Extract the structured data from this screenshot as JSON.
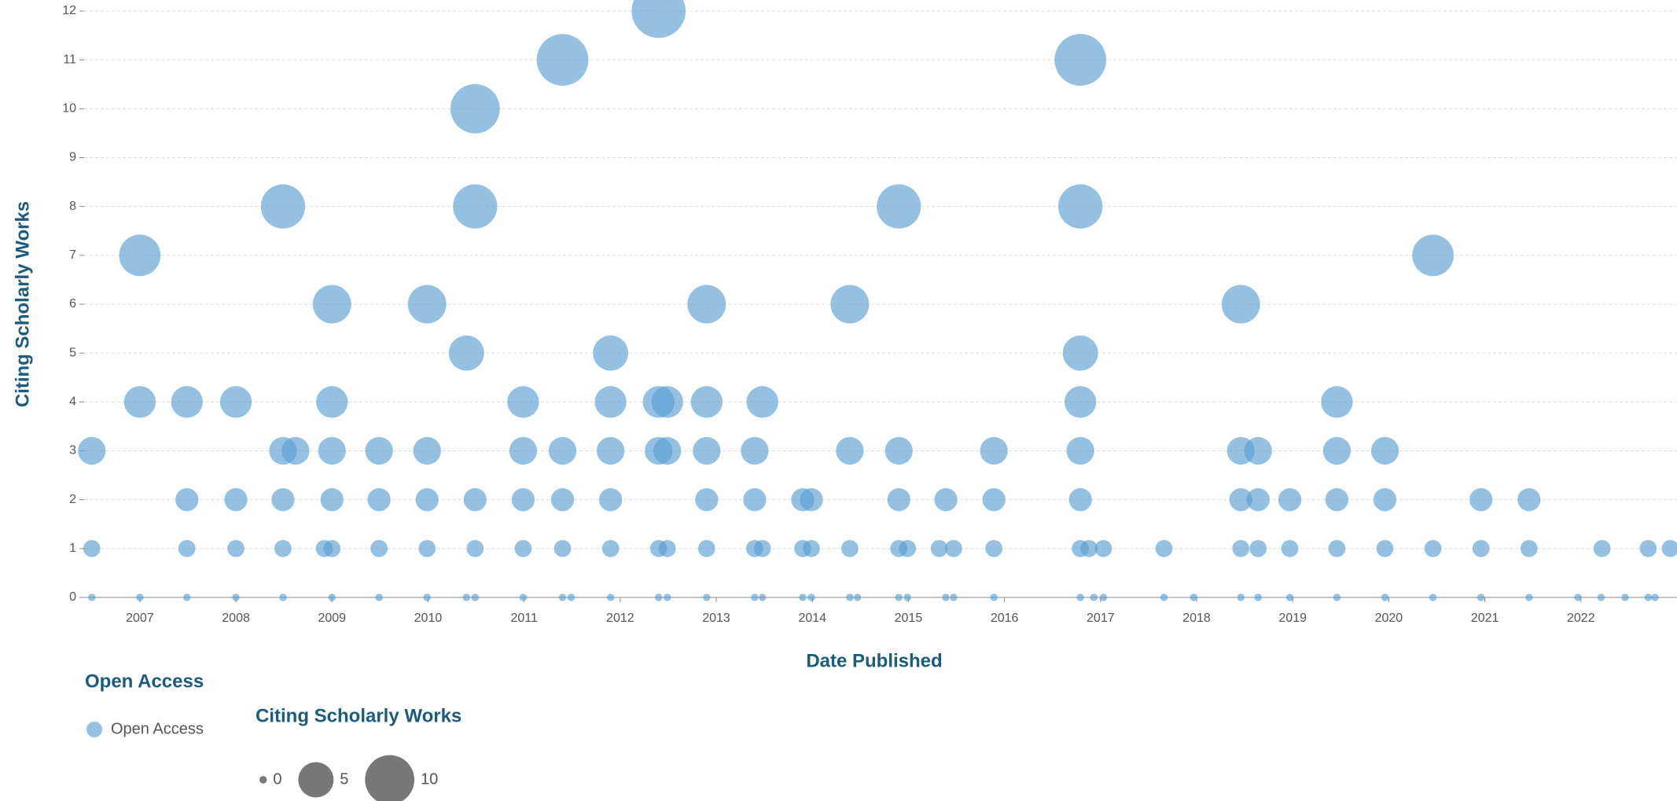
{
  "chart_data": {
    "type": "bubble",
    "y_label": "Citing Scholarly Works",
    "x_label": "Date Published",
    "xlim": [
      2006.42,
      2023.0
    ],
    "ylim": [
      0,
      12
    ],
    "xticks": [
      2007,
      2008,
      2009,
      2010,
      2011,
      2012,
      2013,
      2014,
      2015,
      2016,
      2017,
      2018,
      2019,
      2020,
      2021,
      2022
    ],
    "yticks": [
      0,
      1,
      2,
      3,
      4,
      5,
      6,
      7,
      8,
      9,
      10,
      11,
      12
    ],
    "grid": true,
    "series": [
      {
        "name": "Open Access",
        "color": "#5b9fd2",
        "x": [
          2012.4,
          2011.4,
          2016.79,
          2010.49,
          2008.49,
          2010.49,
          2014.9,
          2016.79,
          2007.0,
          2020.46,
          2009.0,
          2009.99,
          2012.9,
          2014.39,
          2018.46,
          2010.4,
          2011.9,
          2016.79,
          2007.0,
          2007.49,
          2008.0,
          2009.0,
          2010.99,
          2011.9,
          2012.4,
          2012.49,
          2012.9,
          2013.48,
          2016.79,
          2019.46,
          2006.5,
          2008.49,
          2008.62,
          2009.0,
          2009.49,
          2009.99,
          2010.99,
          2011.4,
          2011.9,
          2012.4,
          2012.49,
          2012.9,
          2013.4,
          2014.39,
          2014.9,
          2015.89,
          2016.79,
          2018.46,
          2018.64,
          2019.46,
          2019.96,
          2007.49,
          2008.0,
          2008.49,
          2009.0,
          2009.49,
          2009.99,
          2010.49,
          2010.99,
          2011.4,
          2011.9,
          2012.9,
          2013.4,
          2013.9,
          2013.99,
          2014.9,
          2015.39,
          2015.89,
          2016.79,
          2018.46,
          2018.64,
          2018.97,
          2019.46,
          2019.96,
          2020.96,
          2021.46,
          2006.5,
          2007.49,
          2008.0,
          2008.49,
          2008.92,
          2009.0,
          2009.49,
          2009.99,
          2010.49,
          2010.99,
          2011.4,
          2011.9,
          2012.4,
          2012.49,
          2012.9,
          2013.4,
          2013.48,
          2013.9,
          2013.99,
          2014.39,
          2014.9,
          2014.99,
          2015.32,
          2015.47,
          2015.89,
          2016.79,
          2016.88,
          2017.03,
          2017.66,
          2018.46,
          2018.64,
          2018.97,
          2019.46,
          2019.96,
          2020.46,
          2020.96,
          2021.46,
          2022.22,
          2022.7,
          2022.93,
          2006.5,
          2007.0,
          2007.49,
          2008.0,
          2008.49,
          2009.0,
          2009.49,
          2009.99,
          2010.4,
          2010.49,
          2010.99,
          2011.4,
          2011.49,
          2011.9,
          2012.4,
          2012.49,
          2012.9,
          2013.4,
          2013.48,
          2013.9,
          2013.99,
          2014.39,
          2014.47,
          2014.9,
          2014.99,
          2015.39,
          2015.47,
          2015.89,
          2016.79,
          2016.93,
          2017.03,
          2017.66,
          2017.97,
          2018.46,
          2018.64,
          2018.97,
          2019.46,
          2019.96,
          2020.46,
          2020.96,
          2021.46,
          2021.97,
          2022.21,
          2022.46,
          2022.7,
          2022.77
        ],
        "values": [
          12,
          11,
          11,
          10,
          8,
          8,
          8,
          8,
          7,
          7,
          6,
          6,
          6,
          6,
          6,
          5,
          5,
          5,
          4,
          4,
          4,
          4,
          4,
          4,
          4,
          4,
          4,
          4,
          4,
          4,
          3,
          3,
          3,
          3,
          3,
          3,
          3,
          3,
          3,
          3,
          3,
          3,
          3,
          3,
          3,
          3,
          3,
          3,
          3,
          3,
          3,
          2,
          2,
          2,
          2,
          2,
          2,
          2,
          2,
          2,
          2,
          2,
          2,
          2,
          2,
          2,
          2,
          2,
          2,
          2,
          2,
          2,
          2,
          2,
          2,
          2,
          1,
          1,
          1,
          1,
          1,
          1,
          1,
          1,
          1,
          1,
          1,
          1,
          1,
          1,
          1,
          1,
          1,
          1,
          1,
          1,
          1,
          1,
          1,
          1,
          1,
          1,
          1,
          1,
          1,
          1,
          1,
          1,
          1,
          1,
          1,
          1,
          1,
          1,
          1,
          1,
          0,
          0,
          0,
          0,
          0,
          0,
          0,
          0,
          0,
          0,
          0,
          0,
          0,
          0,
          0,
          0,
          0,
          0,
          0,
          0,
          0,
          0,
          0,
          0,
          0,
          0,
          0,
          0,
          0,
          0,
          0,
          0,
          0,
          0,
          0,
          0,
          0,
          0,
          0,
          0,
          0,
          0,
          0,
          0,
          0,
          0
        ]
      }
    ],
    "color_legend_title": "Open Access",
    "size_legend_title": "Citing Scholarly Works",
    "size_legend": [
      0,
      5,
      10
    ]
  }
}
